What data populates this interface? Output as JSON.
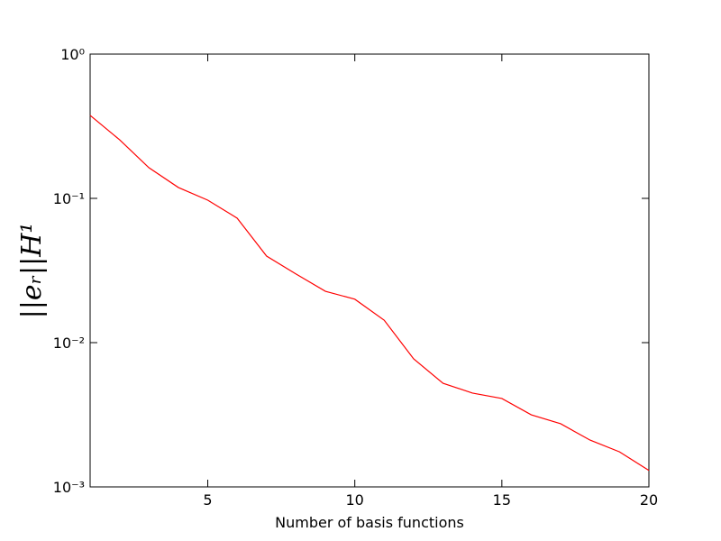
{
  "chart_data": {
    "type": "line",
    "log_y": true,
    "x_label": "Number of basis functions",
    "y_label": "||eᵣ||H¹",
    "x": [
      1,
      2,
      3,
      4,
      5,
      6,
      7,
      8,
      9,
      10,
      11,
      12,
      13,
      14,
      15,
      16,
      17,
      18,
      19,
      20
    ],
    "series": [
      {
        "color": "#ff0000",
        "values": [
          0.376,
          0.255,
          0.163,
          0.119,
          0.0972,
          0.0729,
          0.0398,
          0.0299,
          0.0227,
          0.02,
          0.0143,
          0.00772,
          0.00523,
          0.00447,
          0.0041,
          0.00316,
          0.00274,
          0.00211,
          0.00175,
          0.0013
        ]
      }
    ],
    "xlim": [
      1,
      20
    ],
    "xticks": [
      5,
      10,
      15,
      20
    ],
    "ylim": [
      0.001,
      1
    ],
    "yticks": [
      {
        "value": 0.001,
        "label": "10⁻³"
      },
      {
        "value": 0.01,
        "label": "10⁻²"
      },
      {
        "value": 0.1,
        "label": "10⁻¹"
      },
      {
        "value": 1,
        "label": "10⁰"
      }
    ]
  }
}
